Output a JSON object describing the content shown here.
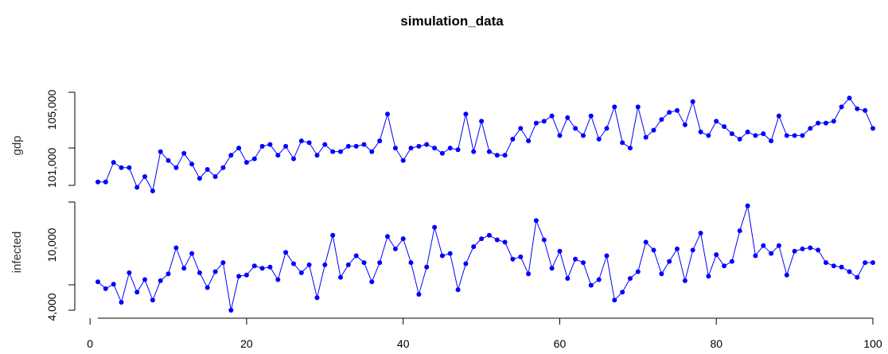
{
  "chart_data": {
    "type": "line",
    "title": "simulation_data",
    "x": [
      1,
      2,
      3,
      4,
      5,
      6,
      7,
      8,
      9,
      10,
      11,
      12,
      13,
      14,
      15,
      16,
      17,
      18,
      19,
      20,
      21,
      22,
      23,
      24,
      25,
      26,
      27,
      28,
      29,
      30,
      31,
      32,
      33,
      34,
      35,
      36,
      37,
      38,
      39,
      40,
      41,
      42,
      43,
      44,
      45,
      46,
      47,
      48,
      49,
      50,
      51,
      52,
      53,
      54,
      55,
      56,
      57,
      58,
      59,
      60,
      61,
      62,
      63,
      64,
      65,
      66,
      67,
      68,
      69,
      70,
      71,
      72,
      73,
      74,
      75,
      76,
      77,
      78,
      79,
      80,
      81,
      82,
      83,
      84,
      85,
      86,
      87,
      88,
      89,
      90,
      91,
      92,
      93,
      94,
      95,
      96,
      97,
      98,
      99,
      100
    ],
    "xlim": [
      1,
      100
    ],
    "xticks": [
      "0",
      "20",
      "40",
      "60",
      "80",
      "100"
    ],
    "panels": [
      {
        "ylabel": "gdp",
        "ylim": [
          100400,
          106500
        ],
        "yticks": [
          "101,000",
          "105,000"
        ],
        "series": [
          {
            "values": [
              100900,
              100900,
              102000,
              101700,
              101700,
              100600,
              101200,
              100400,
              102600,
              102100,
              101700,
              102500,
              101900,
              101100,
              101600,
              101200,
              101700,
              102400,
              102800,
              102000,
              102200,
              102900,
              103000,
              102400,
              102900,
              102200,
              103200,
              103100,
              102400,
              103000,
              102600,
              102600,
              102900,
              102900,
              103000,
              102600,
              103200,
              104700,
              102800,
              102100,
              102800,
              102900,
              103000,
              102800,
              102500,
              102800,
              102700,
              104700,
              102600,
              104300,
              102600,
              102400,
              102400,
              103300,
              103900,
              103200,
              104200,
              104300,
              104600,
              103500,
              104500,
              103900,
              103500,
              104600,
              103300,
              103900,
              105100,
              103100,
              102800,
              105100,
              103400,
              103800,
              104400,
              104800,
              104900,
              104100,
              105400,
              103700,
              103500,
              104300,
              104000,
              103600,
              103300,
              103700,
              103500,
              103600,
              103200,
              104600,
              103500,
              103500,
              103500,
              103900,
              104200,
              104200,
              104300,
              105100,
              105600,
              105000,
              104900,
              103900
            ]
          }
        ]
      },
      {
        "ylabel": "infected",
        "ylim": [
          4000,
          13600
        ],
        "yticks": [
          "4,000",
          "10,000"
        ],
        "series": [
          {
            "values": [
              6500,
              5900,
              6300,
              4700,
              7300,
              5600,
              6700,
              4900,
              6600,
              7200,
              9500,
              7700,
              9000,
              7300,
              6000,
              7400,
              8200,
              4000,
              7000,
              7100,
              7900,
              7700,
              7800,
              6700,
              9100,
              8100,
              7300,
              8000,
              5100,
              8000,
              10600,
              6900,
              8000,
              8800,
              8200,
              6500,
              8200,
              10500,
              9400,
              10300,
              8200,
              5400,
              7800,
              11300,
              8800,
              9000,
              5800,
              8100,
              9600,
              10300,
              10600,
              10200,
              10000,
              8500,
              8700,
              7200,
              11900,
              10200,
              7700,
              9200,
              6800,
              8500,
              8200,
              6200,
              6700,
              8800,
              4900,
              5600,
              6800,
              7400,
              10000,
              9300,
              7200,
              8300,
              9400,
              6600,
              9300,
              10800,
              7000,
              8900,
              7900,
              8300,
              11000,
              13200,
              8800,
              9700,
              9000,
              9700,
              7100,
              9200,
              9400,
              9500,
              9300,
              8200,
              7900,
              7800,
              7400,
              6900,
              8200,
              8200
            ]
          }
        ]
      }
    ]
  }
}
